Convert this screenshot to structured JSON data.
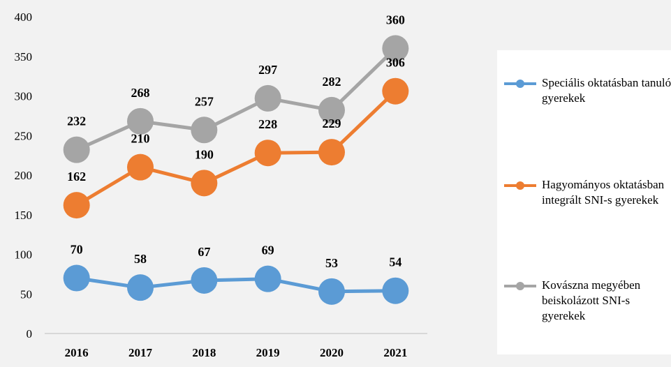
{
  "chart_data": {
    "type": "line",
    "categories": [
      "2016",
      "2017",
      "2018",
      "2019",
      "2020",
      "2021"
    ],
    "ylim": [
      0,
      400
    ],
    "yticks": [
      0,
      50,
      100,
      150,
      200,
      250,
      300,
      350,
      400
    ],
    "grid": false,
    "legend_position": "right",
    "series": [
      {
        "name": "Speciális oktatásban tanuló gyerekek",
        "color": "#5b9bd5",
        "values": [
          70,
          58,
          67,
          69,
          53,
          54
        ]
      },
      {
        "name": "Hagyományos oktatásban integrált SNI-s gyerekek",
        "color": "#ed7d31",
        "values": [
          162,
          210,
          190,
          228,
          229,
          306
        ]
      },
      {
        "name": "Kovászna megyében beiskolázott SNI-s gyerekek",
        "color": "#a5a5a5",
        "values": [
          232,
          268,
          257,
          297,
          282,
          360
        ]
      }
    ]
  }
}
